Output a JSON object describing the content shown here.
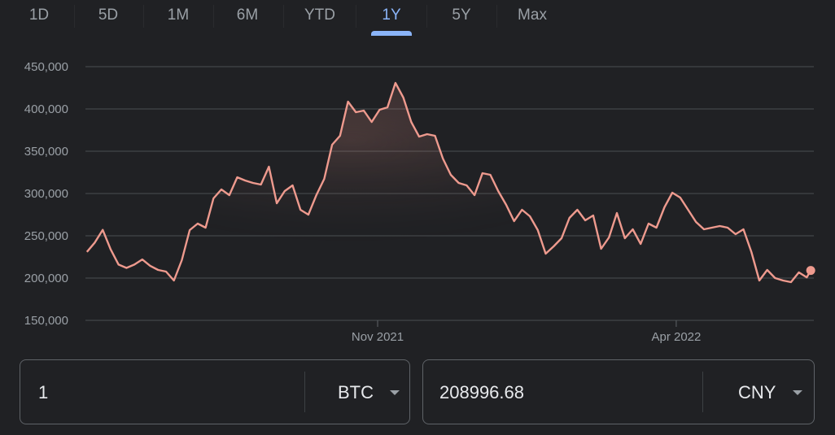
{
  "tabs": [
    {
      "label": "1D",
      "active": false
    },
    {
      "label": "5D",
      "active": false
    },
    {
      "label": "1M",
      "active": false
    },
    {
      "label": "6M",
      "active": false
    },
    {
      "label": "YTD",
      "active": false
    },
    {
      "label": "1Y",
      "active": true
    },
    {
      "label": "5Y",
      "active": false
    },
    {
      "label": "Max",
      "active": false
    }
  ],
  "colors": {
    "background": "#202124",
    "line": "#ee9a8e",
    "active_tab": "#8ab4f8",
    "grid": "#3c4043"
  },
  "chart_data": {
    "type": "line",
    "ylim": [
      150000,
      450000
    ],
    "yticks": [
      150000,
      200000,
      250000,
      300000,
      350000,
      400000,
      450000
    ],
    "ytick_labels": [
      "150,000",
      "200,000",
      "250,000",
      "300,000",
      "350,000",
      "400,000",
      "450,000"
    ],
    "xticks": [
      {
        "date": "2021-11-01",
        "label": "Nov 2021"
      },
      {
        "date": "2022-04-01",
        "label": "Apr 2022"
      }
    ],
    "grid": "horizontal",
    "series": [
      {
        "x": [
          "2021-06-07",
          "2021-06-11",
          "2021-06-15",
          "2021-06-19",
          "2021-06-23",
          "2021-06-27",
          "2021-07-01",
          "2021-07-05",
          "2021-07-09",
          "2021-07-13",
          "2021-07-17",
          "2021-07-21",
          "2021-07-25",
          "2021-07-29",
          "2021-08-02",
          "2021-08-06",
          "2021-08-10",
          "2021-08-14",
          "2021-08-18",
          "2021-08-22",
          "2021-08-26",
          "2021-08-30",
          "2021-09-03",
          "2021-09-07",
          "2021-09-11",
          "2021-09-15",
          "2021-09-19",
          "2021-09-23",
          "2021-09-27",
          "2021-10-01",
          "2021-10-05",
          "2021-10-09",
          "2021-10-13",
          "2021-10-17",
          "2021-10-21",
          "2021-10-25",
          "2021-10-29",
          "2021-11-02",
          "2021-11-06",
          "2021-11-10",
          "2021-11-14",
          "2021-11-18",
          "2021-11-22",
          "2021-11-26",
          "2021-11-30",
          "2021-12-04",
          "2021-12-08",
          "2021-12-12",
          "2021-12-16",
          "2021-12-20",
          "2021-12-24",
          "2021-12-28",
          "2022-01-01",
          "2022-01-05",
          "2022-01-09",
          "2022-01-13",
          "2022-01-17",
          "2022-01-21",
          "2022-01-25",
          "2022-01-29",
          "2022-02-02",
          "2022-02-06",
          "2022-02-10",
          "2022-02-14",
          "2022-02-18",
          "2022-02-22",
          "2022-02-26",
          "2022-03-02",
          "2022-03-06",
          "2022-03-10",
          "2022-03-14",
          "2022-03-18",
          "2022-03-22",
          "2022-03-26",
          "2022-03-30",
          "2022-04-03",
          "2022-04-07",
          "2022-04-11",
          "2022-04-15",
          "2022-04-19",
          "2022-04-23",
          "2022-04-27",
          "2022-05-01",
          "2022-05-05",
          "2022-05-09",
          "2022-05-13",
          "2022-05-17",
          "2022-05-21",
          "2022-05-25",
          "2022-05-29",
          "2022-06-02",
          "2022-06-06",
          "2022-06-08"
        ],
        "y": [
          231000,
          242000,
          257000,
          234000,
          216000,
          212000,
          216000,
          222000,
          214500,
          209600,
          207700,
          197100,
          221200,
          256700,
          264400,
          259600,
          294200,
          304800,
          298100,
          319200,
          315400,
          312500,
          310600,
          331700,
          288500,
          302900,
          309600,
          280800,
          275000,
          298100,
          317300,
          357700,
          368300,
          408700,
          396200,
          398100,
          384600,
          399000,
          401900,
          430800,
          413500,
          384600,
          367300,
          370200,
          368300,
          341300,
          322100,
          312500,
          309600,
          298100,
          324000,
          322100,
          302900,
          286500,
          267300,
          280800,
          273100,
          256700,
          228800,
          237500,
          247100,
          271200,
          280800,
          268300,
          274000,
          234600,
          248100,
          276900,
          247100,
          257700,
          240400,
          264400,
          259600,
          283700,
          301000,
          295200,
          280800,
          266300,
          257700,
          259600,
          261500,
          259600,
          251900,
          257700,
          230800,
          197100,
          209600,
          200000,
          197100,
          195200,
          206700,
          200900,
          208996.68
        ]
      }
    ]
  },
  "converter": {
    "from": {
      "value": "1",
      "currency": "BTC"
    },
    "to": {
      "value": "208996.68",
      "currency": "CNY"
    }
  }
}
